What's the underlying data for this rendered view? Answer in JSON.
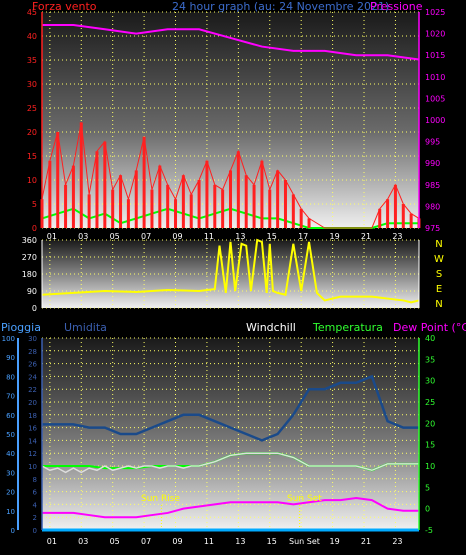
{
  "colors": {
    "red": "#ff2020",
    "magenta": "#ff00ff",
    "green": "#00ff00",
    "blue_gray": "#1a4a8a",
    "yellow": "#ffff00",
    "cyan": "#00aaff",
    "bright_blue": "#4aa0ff",
    "axis_blue": "#3c6ccc",
    "dark_blue": "#3b5fb0",
    "light_green": "#30ff30",
    "white": "#ffffff"
  },
  "chart_data": [
    {
      "type": "line",
      "title": "24 hour graph (au:  24 Novembre 2021)",
      "left_label": "Forza vento",
      "right_label": "Pressione",
      "x_ticks": [
        "01",
        "03",
        "05",
        "07",
        "09",
        "11",
        "13",
        "15",
        "17",
        "19",
        "21",
        "23"
      ],
      "xlim": [
        0,
        24
      ],
      "left_ylim": [
        0,
        45
      ],
      "left_ticks": [
        0,
        5,
        10,
        15,
        20,
        25,
        30,
        35,
        40,
        45
      ],
      "right_ylim": [
        975,
        1025
      ],
      "right_ticks": [
        975,
        980,
        985,
        990,
        995,
        1000,
        1005,
        1010,
        1015,
        1020,
        1025
      ],
      "series": [
        {
          "key": "pressure",
          "axis": "right",
          "x": [
            0,
            2,
            4,
            6,
            8,
            10,
            12,
            14,
            16,
            18,
            20,
            22,
            24
          ],
          "y": [
            1022,
            1022,
            1021,
            1020,
            1021,
            1021,
            1019,
            1017,
            1016,
            1016,
            1015,
            1015,
            1014
          ]
        },
        {
          "key": "avg_wind",
          "axis": "left",
          "x": [
            0,
            1,
            2,
            3,
            4,
            5,
            6,
            7,
            8,
            9,
            10,
            11,
            12,
            13,
            14,
            15,
            16,
            17,
            18,
            19,
            20,
            21,
            22,
            23,
            24
          ],
          "y": [
            2,
            3,
            4,
            2,
            3,
            1,
            2,
            3,
            4,
            3,
            2,
            3,
            4,
            3,
            2,
            2,
            1,
            0,
            0,
            0,
            0,
            0,
            1,
            1,
            1
          ]
        },
        {
          "key": "gust",
          "axis": "left",
          "x": [
            0,
            0.5,
            1,
            1.5,
            2,
            2.5,
            3,
            3.5,
            4,
            4.5,
            5,
            5.5,
            6,
            6.5,
            7,
            7.5,
            8,
            8.5,
            9,
            9.5,
            10,
            10.5,
            11,
            11.5,
            12,
            12.5,
            13,
            13.5,
            14,
            14.5,
            15,
            15.5,
            16,
            16.5,
            17,
            18,
            19,
            20,
            21,
            21.5,
            22,
            22.5,
            23,
            23.5,
            24
          ],
          "y": [
            6,
            14,
            20,
            9,
            13,
            22,
            7,
            16,
            18,
            8,
            11,
            6,
            12,
            19,
            8,
            13,
            9,
            6,
            11,
            7,
            10,
            14,
            9,
            8,
            12,
            16,
            11,
            9,
            14,
            8,
            12,
            10,
            7,
            4,
            2,
            0,
            0,
            0,
            0,
            4,
            6,
            9,
            5,
            3,
            2
          ]
        }
      ]
    },
    {
      "type": "line",
      "title": "",
      "left_ylim": [
        0,
        360
      ],
      "left_ticks": [
        0,
        90,
        180,
        270,
        360
      ],
      "right_labels": [
        "N",
        "W",
        "S",
        "E",
        "N"
      ],
      "series": [
        {
          "key": "wind_dir",
          "x": [
            0,
            2,
            4,
            6,
            8,
            10,
            11,
            11.3,
            11.7,
            12,
            12.3,
            12.7,
            13,
            13.3,
            13.7,
            14,
            14.3,
            14.5,
            14.7,
            15,
            15.5,
            16,
            16.5,
            17,
            17.5,
            18,
            19,
            20,
            21,
            22,
            23,
            23.5,
            24
          ],
          "y": [
            70,
            80,
            90,
            85,
            95,
            90,
            100,
            330,
            80,
            350,
            90,
            340,
            330,
            90,
            360,
            350,
            80,
            340,
            90,
            80,
            70,
            340,
            90,
            350,
            80,
            40,
            60,
            60,
            60,
            50,
            40,
            30,
            40
          ]
        }
      ]
    },
    {
      "type": "line",
      "title": "",
      "labels": {
        "rain": "Pioggia",
        "humidity": "Umidita",
        "windchill": "Windchill",
        "temp": "Temperatura",
        "dew": "Dew Point (°C)"
      },
      "annotations": {
        "sunrise": "Sun Rise",
        "sunset": "Sun Set",
        "sunset_tick": "Sun Set"
      },
      "sunrise_x": 7.6,
      "sunset_x": 16.4,
      "rain_ticks": [
        0,
        10,
        20,
        30,
        40,
        50,
        60,
        70,
        80,
        90,
        100
      ],
      "rain_ylim": [
        0,
        100
      ],
      "humidity_ticks": [
        0,
        2,
        4,
        6,
        8,
        10,
        12,
        14,
        16,
        18,
        20,
        22,
        24,
        26,
        28,
        30
      ],
      "humidity_ylim": [
        0,
        30
      ],
      "temp_ticks": [
        -5,
        0,
        5,
        10,
        15,
        20,
        25,
        30,
        35,
        40
      ],
      "temp_ylim": [
        -5,
        40
      ],
      "series": [
        {
          "key": "humidity",
          "x": [
            0,
            1,
            2,
            3,
            4,
            5,
            6,
            7,
            8,
            9,
            10,
            11,
            12,
            13,
            14,
            15,
            16,
            17,
            18,
            19,
            20,
            21,
            22,
            23,
            24
          ],
          "y": [
            16.5,
            16.5,
            16.5,
            16,
            16,
            15,
            15,
            16,
            17,
            18,
            18,
            17,
            16,
            15,
            14,
            15,
            18,
            22,
            22,
            23,
            23,
            24,
            17,
            16,
            16
          ]
        },
        {
          "key": "temperature",
          "axis": "right",
          "x": [
            0,
            1,
            2,
            3,
            4,
            5,
            6,
            7,
            8,
            9,
            10,
            11,
            12,
            13,
            14,
            15,
            16,
            17,
            18,
            19,
            20,
            21,
            22,
            23,
            24
          ],
          "y": [
            10,
            10,
            10,
            10,
            9.5,
            9.5,
            9.5,
            10,
            10,
            10,
            10,
            11,
            12.5,
            13,
            13,
            13,
            12,
            10,
            10,
            10,
            10,
            9,
            10.5,
            10.5,
            10.5
          ]
        },
        {
          "key": "windchill",
          "axis": "right",
          "x": [
            0,
            0.5,
            1,
            1.5,
            2,
            2.5,
            3,
            3.5,
            4,
            4.5,
            5,
            5.5,
            6,
            6.5,
            7,
            7.5,
            8,
            8.5,
            9,
            9.5,
            10,
            11,
            12,
            13,
            14,
            15,
            16,
            17,
            18,
            19,
            20,
            21,
            22,
            23,
            24
          ],
          "y": [
            10,
            9,
            9.5,
            8.5,
            9.5,
            8.5,
            9.5,
            9,
            10,
            9,
            9.5,
            10,
            9.5,
            10,
            10,
            9.5,
            10,
            10,
            9.5,
            10,
            10,
            11,
            12.5,
            13,
            13,
            13,
            12,
            10,
            10,
            10,
            10,
            9,
            10.5,
            10.5,
            10.5
          ]
        },
        {
          "key": "dewpoint",
          "axis": "right",
          "x": [
            0,
            1,
            2,
            3,
            4,
            5,
            6,
            7,
            8,
            9,
            10,
            11,
            12,
            13,
            14,
            15,
            16,
            17,
            18,
            19,
            20,
            21,
            22,
            23,
            24
          ],
          "y": [
            -1,
            -1,
            -1,
            -1.5,
            -2,
            -2,
            -2,
            -1.5,
            -1,
            0,
            0.5,
            1,
            1.5,
            1.5,
            1.5,
            1.5,
            1,
            1.5,
            2,
            2,
            2.5,
            2,
            0,
            -0.5,
            -0.5
          ]
        },
        {
          "key": "rain",
          "axis": "rain",
          "x": [
            0,
            24
          ],
          "y": [
            0,
            0
          ]
        }
      ]
    }
  ]
}
